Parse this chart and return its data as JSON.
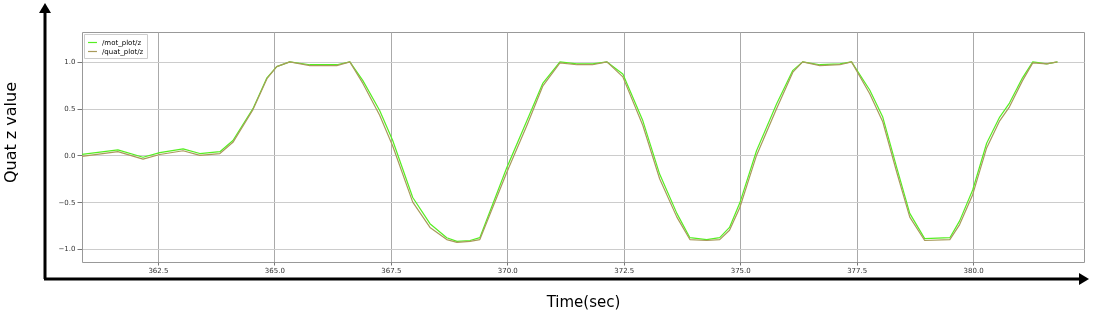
{
  "chart_data": {
    "type": "line",
    "xlabel": "Time(sec)",
    "ylabel": "Quat z value",
    "x": [
      360.87,
      361.64,
      362.18,
      362.54,
      363.04,
      363.4,
      363.83,
      364.11,
      364.54,
      364.84,
      365.05,
      365.33,
      365.76,
      366.34,
      366.62,
      366.9,
      367.26,
      367.54,
      367.97,
      368.34,
      368.7,
      368.92,
      369.2,
      369.41,
      369.99,
      370.42,
      370.76,
      371.13,
      371.49,
      371.83,
      372.14,
      372.48,
      372.91,
      373.27,
      373.64,
      373.92,
      374.28,
      374.56,
      374.77,
      374.99,
      375.35,
      375.78,
      376.13,
      376.34,
      376.71,
      377.14,
      377.39,
      377.78,
      378.06,
      378.36,
      378.64,
      378.96,
      379.5,
      379.71,
      379.99,
      380.29,
      380.57,
      380.78,
      381.06,
      381.28,
      381.58,
      381.81
    ],
    "series": [
      {
        "name": "/mot_plot/z",
        "color": "#55ee22",
        "values": [
          0.01,
          0.06,
          -0.02,
          0.03,
          0.07,
          0.02,
          0.04,
          0.16,
          0.5,
          0.83,
          0.95,
          1.0,
          0.97,
          0.97,
          1.0,
          0.8,
          0.48,
          0.16,
          -0.45,
          -0.73,
          -0.88,
          -0.92,
          -0.91,
          -0.88,
          -0.13,
          0.37,
          0.77,
          1.0,
          0.98,
          0.98,
          1.0,
          0.87,
          0.37,
          -0.2,
          -0.62,
          -0.88,
          -0.9,
          -0.88,
          -0.77,
          -0.51,
          0.05,
          0.55,
          0.91,
          1.0,
          0.97,
          0.98,
          1.0,
          0.7,
          0.41,
          -0.13,
          -0.62,
          -0.89,
          -0.88,
          -0.7,
          -0.37,
          0.13,
          0.41,
          0.56,
          0.83,
          1.0,
          0.98,
          1.0
        ]
      },
      {
        "name": "/quat_plot/z",
        "color": "#a89a5a",
        "values": [
          -0.01,
          0.04,
          -0.04,
          0.01,
          0.05,
          0.0,
          0.02,
          0.14,
          0.49,
          0.82,
          0.95,
          1.0,
          0.96,
          0.96,
          1.0,
          0.77,
          0.43,
          0.1,
          -0.5,
          -0.77,
          -0.9,
          -0.93,
          -0.92,
          -0.9,
          -0.18,
          0.32,
          0.74,
          0.99,
          0.97,
          0.97,
          1.0,
          0.84,
          0.32,
          -0.25,
          -0.66,
          -0.9,
          -0.91,
          -0.9,
          -0.8,
          -0.56,
          0.0,
          0.5,
          0.89,
          1.0,
          0.96,
          0.97,
          1.0,
          0.66,
          0.36,
          -0.18,
          -0.66,
          -0.91,
          -0.9,
          -0.74,
          -0.42,
          0.08,
          0.37,
          0.52,
          0.8,
          0.99,
          0.98,
          1.0
        ]
      }
    ],
    "xlim": [
      360.87,
      382.38
    ],
    "ylim": [
      -1.14,
      1.32
    ],
    "xticks": [
      {
        "value": 362.5,
        "label": "362.5"
      },
      {
        "value": 365,
        "label": "365.0"
      },
      {
        "value": 367.5,
        "label": "367.5"
      },
      {
        "value": 370,
        "label": "370.0"
      },
      {
        "value": 372.5,
        "label": "372.5"
      },
      {
        "value": 375,
        "label": "375.0"
      },
      {
        "value": 377.5,
        "label": "377.5"
      },
      {
        "value": 380,
        "label": "380.0"
      }
    ],
    "yticks": [
      {
        "value": -1,
        "label": "−1.0"
      },
      {
        "value": -0.5,
        "label": "−0.5"
      },
      {
        "value": 0,
        "label": "0.0"
      },
      {
        "value": 0.5,
        "label": "0.5"
      },
      {
        "value": 1,
        "label": "1.0"
      }
    ],
    "grid": true,
    "legend": "top left",
    "marker": "none",
    "line_style": "solid"
  }
}
